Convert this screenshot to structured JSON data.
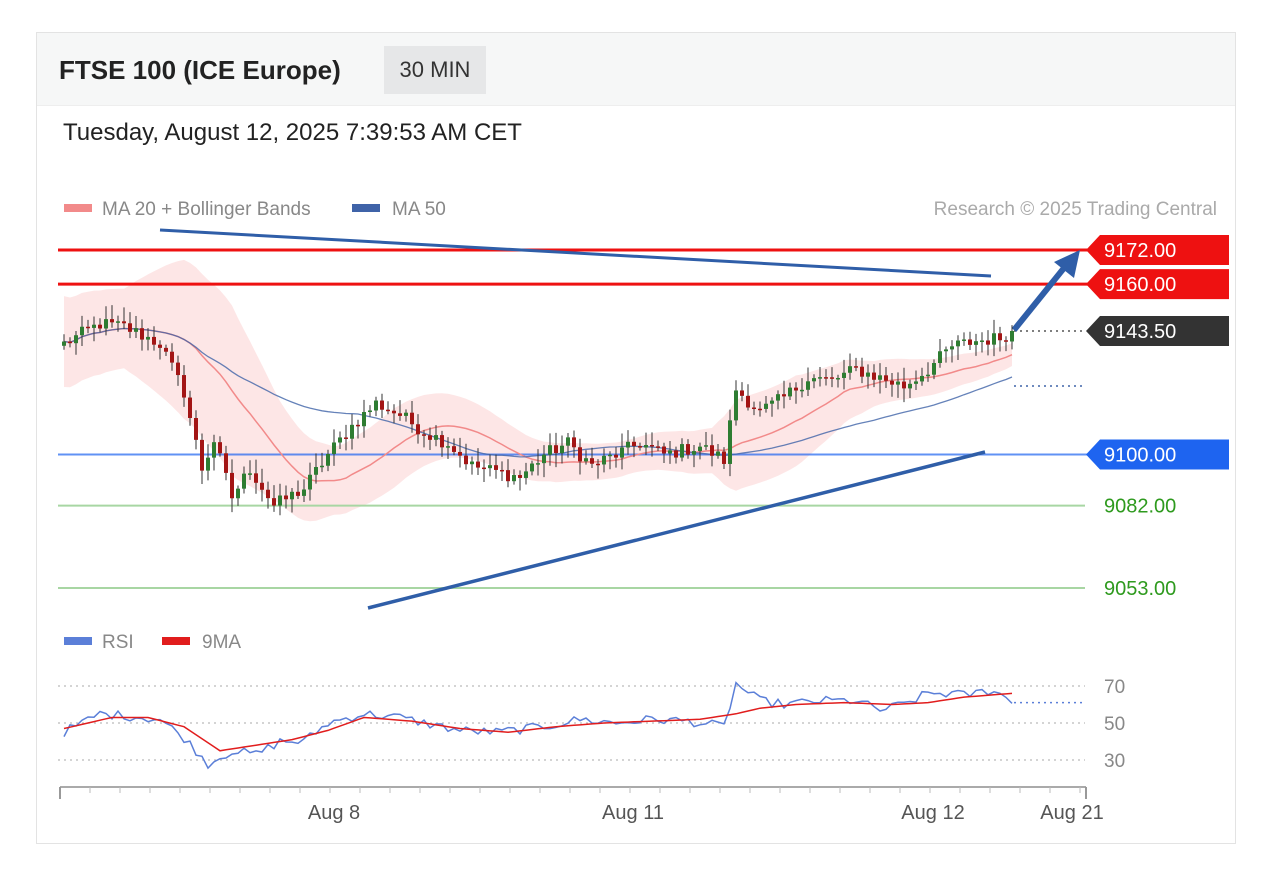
{
  "header": {
    "title": "FTSE 100 (ICE Europe)",
    "timeframe": "30 MIN",
    "timestamp": "Tuesday, August 12, 2025 7:39:53 AM CET"
  },
  "copyright": "Research © 2025 Trading Central",
  "colors": {
    "resistance": "#ee1111",
    "pivot": "#1e64f0",
    "support": "#a8d6a3",
    "support_text": "#2e9a1e",
    "ma20": "#f28a8a",
    "bollinger_fill": "#fde2e2",
    "ma50": "#3f63a8",
    "trendline": "#2f5ea8",
    "candle_up": "#2e7d32",
    "candle_down": "#a31515",
    "rsi": "#5b7fd8",
    "rsi_ma": "#e11d1d",
    "last_price_bg": "#333333"
  },
  "chart_data": [
    {
      "type": "candlestick",
      "title": "FTSE 100 (ICE Europe) 30 MIN",
      "legend": [
        {
          "label": "MA 20 + Bollinger Bands",
          "color": "#f28a8a"
        },
        {
          "label": "MA 50",
          "color": "#3f63a8"
        }
      ],
      "legend_position": "top-left",
      "y_range": [
        9040,
        9190
      ],
      "levels": [
        {
          "label": "9172.00",
          "value": 9172,
          "kind": "resistance"
        },
        {
          "label": "9160.00",
          "value": 9160,
          "kind": "resistance"
        },
        {
          "label": "9143.50",
          "value": 9143.5,
          "kind": "last"
        },
        {
          "label": "9100.00",
          "value": 9100,
          "kind": "pivot"
        },
        {
          "label": "9082.00",
          "value": 9082,
          "kind": "support"
        },
        {
          "label": "9053.00",
          "value": 9053,
          "kind": "support"
        }
      ],
      "close_anchors": [
        [
          0,
          9139
        ],
        [
          6,
          9146
        ],
        [
          10,
          9145
        ],
        [
          16,
          9139
        ],
        [
          20,
          9122
        ],
        [
          23,
          9095
        ],
        [
          25,
          9105
        ],
        [
          28,
          9085
        ],
        [
          31,
          9095
        ],
        [
          35,
          9082
        ],
        [
          40,
          9088
        ],
        [
          44,
          9100
        ],
        [
          48,
          9110
        ],
        [
          52,
          9118
        ],
        [
          56,
          9114
        ],
        [
          60,
          9108
        ],
        [
          64,
          9104
        ],
        [
          68,
          9096
        ],
        [
          72,
          9094
        ],
        [
          76,
          9092
        ],
        [
          80,
          9100
        ],
        [
          84,
          9104
        ],
        [
          88,
          9096
        ],
        [
          92,
          9100
        ],
        [
          96,
          9104
        ],
        [
          100,
          9100
        ],
        [
          104,
          9102
        ],
        [
          106,
          9103
        ],
        [
          110,
          9098
        ],
        [
          112,
          9123
        ],
        [
          116,
          9115
        ],
        [
          120,
          9120
        ],
        [
          124,
          9127
        ],
        [
          128,
          9126
        ],
        [
          132,
          9130
        ],
        [
          136,
          9127
        ],
        [
          140,
          9124
        ],
        [
          144,
          9130
        ],
        [
          148,
          9138
        ],
        [
          152,
          9140
        ],
        [
          156,
          9141
        ],
        [
          158,
          9143.5
        ]
      ],
      "bollinger_half_width": [
        [
          0,
          16
        ],
        [
          10,
          14
        ],
        [
          20,
          28
        ],
        [
          28,
          30
        ],
        [
          36,
          18
        ],
        [
          45,
          12
        ],
        [
          55,
          14
        ],
        [
          65,
          11
        ],
        [
          80,
          7
        ],
        [
          95,
          6
        ],
        [
          108,
          8
        ],
        [
          112,
          16
        ],
        [
          122,
          16
        ],
        [
          135,
          8
        ],
        [
          158,
          4
        ]
      ]
    },
    {
      "type": "line",
      "legend": [
        {
          "label": "RSI",
          "color": "#5b7fd8"
        },
        {
          "label": "9MA",
          "color": "#e11d1d"
        }
      ],
      "y_ticks": [
        70,
        50,
        30
      ],
      "rsi_anchors": [
        [
          0,
          45
        ],
        [
          6,
          55
        ],
        [
          10,
          54
        ],
        [
          16,
          52
        ],
        [
          20,
          42
        ],
        [
          24,
          28
        ],
        [
          28,
          35
        ],
        [
          32,
          33
        ],
        [
          36,
          40
        ],
        [
          40,
          40
        ],
        [
          44,
          50
        ],
        [
          50,
          55
        ],
        [
          56,
          53
        ],
        [
          60,
          50
        ],
        [
          66,
          46
        ],
        [
          72,
          45
        ],
        [
          80,
          48
        ],
        [
          86,
          52
        ],
        [
          92,
          50
        ],
        [
          98,
          52
        ],
        [
          104,
          51
        ],
        [
          110,
          48
        ],
        [
          112,
          71
        ],
        [
          116,
          62
        ],
        [
          120,
          60
        ],
        [
          126,
          62
        ],
        [
          132,
          62
        ],
        [
          136,
          57
        ],
        [
          140,
          60
        ],
        [
          144,
          66
        ],
        [
          148,
          66
        ],
        [
          150,
          65
        ],
        [
          155,
          68
        ],
        [
          158,
          61
        ]
      ],
      "rsi_ma_anchors": [
        [
          0,
          47
        ],
        [
          8,
          53
        ],
        [
          14,
          53
        ],
        [
          20,
          48
        ],
        [
          26,
          35
        ],
        [
          32,
          38
        ],
        [
          38,
          41
        ],
        [
          44,
          46
        ],
        [
          50,
          53
        ],
        [
          58,
          51
        ],
        [
          66,
          47
        ],
        [
          74,
          45
        ],
        [
          82,
          48
        ],
        [
          90,
          50
        ],
        [
          98,
          51
        ],
        [
          106,
          52
        ],
        [
          112,
          55
        ],
        [
          116,
          58
        ],
        [
          122,
          60
        ],
        [
          130,
          61
        ],
        [
          138,
          60
        ],
        [
          144,
          61
        ],
        [
          150,
          64
        ],
        [
          158,
          66
        ]
      ]
    }
  ],
  "x_axis": {
    "tick_labels": [
      "Aug 8",
      "Aug 11",
      "Aug 12",
      "Aug 21"
    ]
  }
}
